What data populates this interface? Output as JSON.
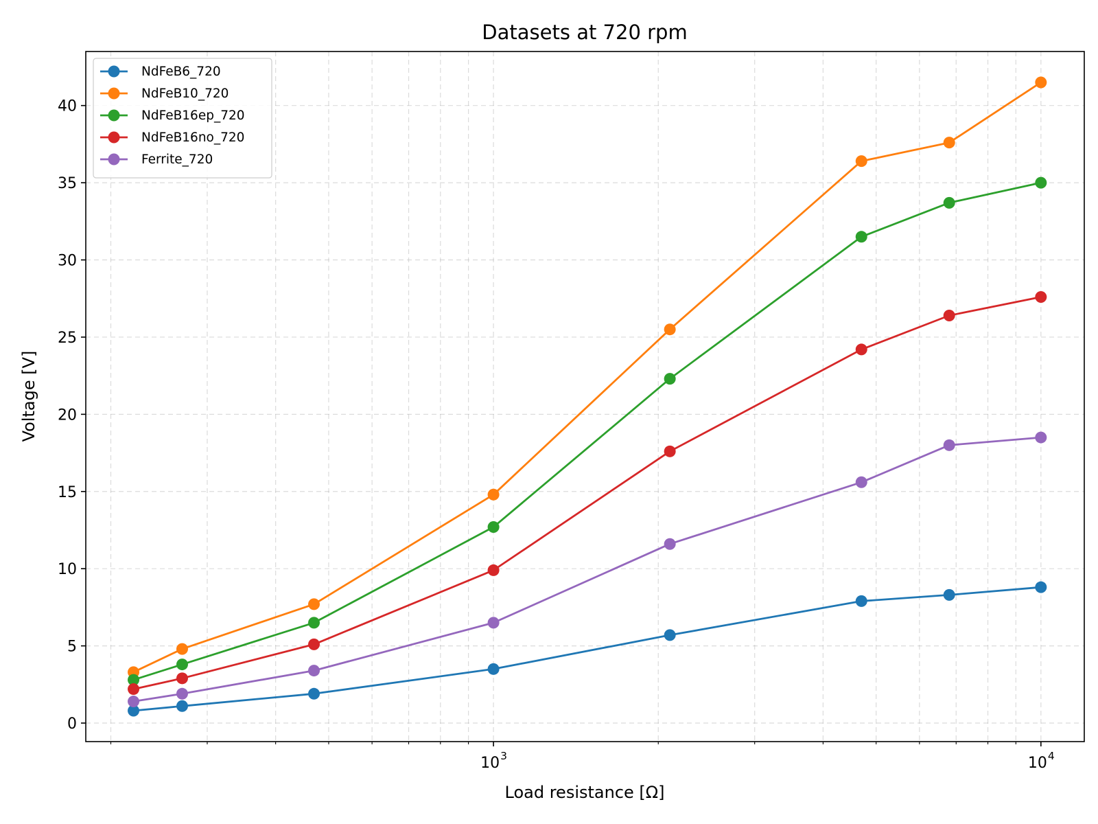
{
  "chart_data": {
    "type": "line",
    "title": "Datasets at 720 rpm",
    "xlabel": "Load resistance [Ω]",
    "ylabel": "Voltage [V]",
    "xscale": "log",
    "xlim": [
      180,
      12000
    ],
    "ylim": [
      -1.2,
      43.5
    ],
    "grid": true,
    "legend_position": "top-left",
    "x_ticks": [
      {
        "value": 1000,
        "base": "10",
        "exp": "3"
      },
      {
        "value": 10000,
        "base": "10",
        "exp": "4"
      }
    ],
    "y_ticks": [
      0,
      5,
      10,
      15,
      20,
      25,
      30,
      35,
      40
    ],
    "x": [
      220,
      270,
      470,
      1000,
      2100,
      4700,
      6800,
      10000
    ],
    "series": [
      {
        "name": "NdFeB6_720",
        "color": "#1f77b4",
        "values": [
          0.8,
          1.1,
          1.9,
          3.5,
          5.7,
          7.9,
          8.3,
          8.8
        ]
      },
      {
        "name": "NdFeB10_720",
        "color": "#ff7f0e",
        "values": [
          3.3,
          4.8,
          7.7,
          14.8,
          25.5,
          36.4,
          37.6,
          41.5
        ]
      },
      {
        "name": "NdFeB16ep_720",
        "color": "#2ca02c",
        "values": [
          2.8,
          3.8,
          6.5,
          12.7,
          22.3,
          31.5,
          33.7,
          35.0
        ]
      },
      {
        "name": "NdFeB16no_720",
        "color": "#d62728",
        "values": [
          2.2,
          2.9,
          5.1,
          9.9,
          17.6,
          24.2,
          26.4,
          27.6
        ]
      },
      {
        "name": "Ferrite_720",
        "color": "#9467bd",
        "values": [
          1.4,
          1.9,
          3.4,
          6.5,
          11.6,
          15.6,
          18.0,
          18.5
        ]
      }
    ]
  }
}
